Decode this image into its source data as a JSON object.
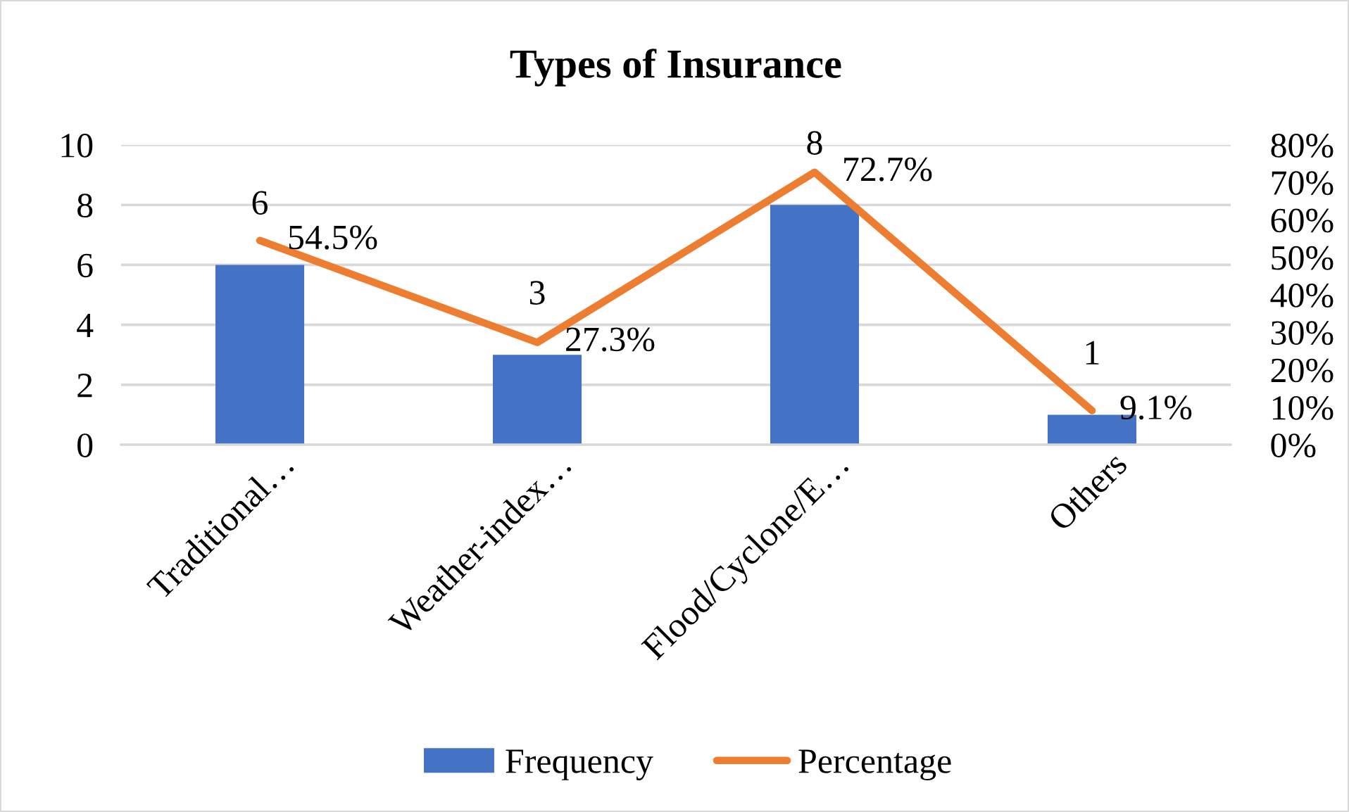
{
  "chart_data": {
    "type": "bar",
    "title": "Types of Insurance",
    "categories": [
      "Traditional…",
      "Weather-index…",
      "Flood/Cyclone/E…",
      "Others"
    ],
    "series": [
      {
        "name": "Frequency",
        "color": "#4472c4",
        "values": [
          6,
          3,
          8,
          1
        ],
        "value_labels": [
          "6",
          "3",
          "8",
          "1"
        ]
      },
      {
        "name": "Percentage",
        "type": "line",
        "axis": "y2",
        "color": "#ed7d31",
        "values": [
          54.5,
          27.3,
          72.7,
          9.1
        ],
        "value_labels": [
          "54.5%",
          "27.3%",
          "72.7%",
          "9.1%"
        ]
      }
    ],
    "ylim": [
      0,
      10
    ],
    "yticks": [
      0,
      2,
      4,
      6,
      8,
      10
    ],
    "y2lim": [
      0,
      80
    ],
    "y2ticks": [
      {
        "value": 0,
        "label": "0%"
      },
      {
        "value": 10,
        "label": "10%"
      },
      {
        "value": 20,
        "label": "20%"
      },
      {
        "value": 30,
        "label": "30%"
      },
      {
        "value": 40,
        "label": "40%"
      },
      {
        "value": 50,
        "label": "50%"
      },
      {
        "value": 60,
        "label": "60%"
      },
      {
        "value": 70,
        "label": "70%"
      },
      {
        "value": 80,
        "label": "80%"
      }
    ],
    "grid": "y",
    "legend": "bottom"
  }
}
